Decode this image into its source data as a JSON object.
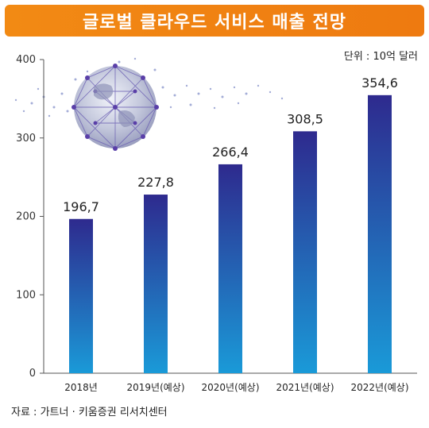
{
  "header": {
    "title": "글로벌 클라우드 서비스 매출 전망"
  },
  "unit_label": "단위 : 10억 달러",
  "source_label": "자료 : 가트너 · 키움증권 리서치센터",
  "colors": {
    "banner": "#f08418",
    "bar_top": "#2e2a8e",
    "bar_bottom": "#1a9ad8",
    "axis": "#555555"
  },
  "chart_data": {
    "type": "bar",
    "title": "글로벌 클라우드 서비스 매출 전망",
    "categories": [
      "2018년",
      "2019년(예상)",
      "2020년(예상)",
      "2021년(예상)",
      "2022년(예상)"
    ],
    "values": [
      196.7,
      227.8,
      266.4,
      308.5,
      354.6
    ],
    "value_labels": [
      "196,7",
      "227,8",
      "266,4",
      "308,5",
      "354,6"
    ],
    "yticks": [
      0,
      100,
      200,
      300,
      400
    ],
    "ylim": [
      0,
      400
    ],
    "grid": false,
    "xlabel": "",
    "ylabel": ""
  }
}
